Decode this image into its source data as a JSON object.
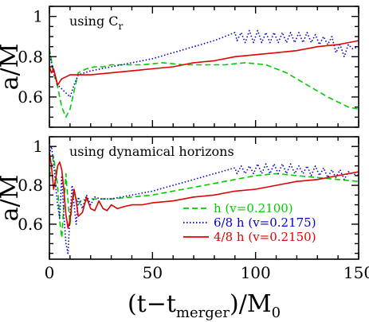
{
  "chart_data": [
    {
      "type": "line",
      "annotation": "using C",
      "annotation_sub": "r",
      "ylabel": "a/M",
      "xlim": [
        0,
        150
      ],
      "ylim": [
        0.45,
        1.05
      ],
      "xticks": [
        0,
        50,
        100,
        150
      ],
      "yticks": [
        0.6,
        0.8,
        1
      ],
      "ytick_labels": [
        "0.6",
        "0.8",
        "1"
      ],
      "series": [
        {
          "color": "#00cc00",
          "dash": "dashed",
          "x": [
            0,
            2,
            4,
            6,
            8,
            10,
            12,
            14,
            18,
            22,
            26,
            30,
            35,
            45,
            55,
            65,
            75,
            85,
            95,
            105,
            115,
            125,
            135,
            145,
            150
          ],
          "y": [
            0.84,
            0.72,
            0.65,
            0.55,
            0.5,
            0.54,
            0.63,
            0.72,
            0.74,
            0.75,
            0.75,
            0.76,
            0.76,
            0.76,
            0.77,
            0.76,
            0.76,
            0.76,
            0.77,
            0.76,
            0.72,
            0.66,
            0.6,
            0.55,
            0.54
          ]
        },
        {
          "color": "#0000cc",
          "dash": "dotted",
          "x": [
            0,
            2,
            4,
            6,
            8,
            10,
            12,
            14,
            20,
            30,
            40,
            50,
            60,
            70,
            80,
            90,
            91,
            93,
            95,
            97,
            99,
            101,
            103,
            105,
            107,
            109,
            111,
            113,
            115,
            117,
            119,
            121,
            123,
            125,
            127,
            129,
            131,
            133,
            135,
            137,
            139,
            141,
            143,
            145,
            147,
            150
          ],
          "y": [
            0.82,
            0.72,
            0.66,
            0.64,
            0.62,
            0.6,
            0.66,
            0.71,
            0.73,
            0.75,
            0.77,
            0.79,
            0.82,
            0.85,
            0.88,
            0.92,
            0.88,
            0.92,
            0.87,
            0.93,
            0.87,
            0.93,
            0.87,
            0.92,
            0.87,
            0.92,
            0.87,
            0.92,
            0.87,
            0.92,
            0.87,
            0.92,
            0.87,
            0.92,
            0.87,
            0.91,
            0.86,
            0.9,
            0.86,
            0.9,
            0.82,
            0.86,
            0.8,
            0.86,
            0.84,
            0.85
          ]
        },
        {
          "color": "#e00000",
          "dash": "solid",
          "x": [
            0,
            1,
            2,
            3,
            4,
            6,
            8,
            10,
            15,
            20,
            30,
            40,
            50,
            60,
            70,
            80,
            90,
            100,
            110,
            120,
            130,
            140,
            150
          ],
          "y": [
            0.75,
            0.72,
            0.74,
            0.7,
            0.66,
            0.69,
            0.7,
            0.71,
            0.71,
            0.71,
            0.72,
            0.73,
            0.74,
            0.75,
            0.77,
            0.78,
            0.8,
            0.81,
            0.82,
            0.83,
            0.85,
            0.86,
            0.88
          ]
        }
      ]
    },
    {
      "type": "line",
      "annotation": "using dynamical horizons",
      "ylabel": "a/M",
      "xlabel_main": "(t−t",
      "xlabel_sub": "merger",
      "xlabel_mid": ")/M",
      "xlabel_sub2": "0",
      "xlim": [
        0,
        150
      ],
      "ylim": [
        0.42,
        1.05
      ],
      "xticks": [
        0,
        50,
        100,
        150
      ],
      "xtick_labels": [
        "0",
        "50",
        "100",
        "150"
      ],
      "yticks": [
        0.6,
        0.8,
        1
      ],
      "ytick_labels": [
        "0.6",
        "0.8",
        "1"
      ],
      "legend": [
        {
          "label": "h (v=0.2100)",
          "color": "#00cc00",
          "dash": "dashed"
        },
        {
          "label": "6/8 h (v=0.2175)",
          "color": "#0000cc",
          "dash": "dotted"
        },
        {
          "label": "4/8 h (v=0.2150)",
          "color": "#e00000",
          "dash": "solid"
        }
      ],
      "series": [
        {
          "color": "#00cc00",
          "dash": "dashed",
          "x": [
            0,
            2,
            4,
            5,
            6,
            7,
            8,
            9,
            10,
            11,
            12,
            14,
            16,
            18,
            20,
            25,
            30,
            40,
            50,
            60,
            70,
            80,
            90,
            100,
            110,
            120,
            130,
            140,
            150
          ],
          "y": [
            0.84,
            0.95,
            0.8,
            0.62,
            0.53,
            0.7,
            0.86,
            0.72,
            0.6,
            0.7,
            0.76,
            0.7,
            0.73,
            0.72,
            0.73,
            0.73,
            0.73,
            0.74,
            0.75,
            0.77,
            0.79,
            0.81,
            0.83,
            0.85,
            0.86,
            0.85,
            0.84,
            0.83,
            0.82
          ]
        },
        {
          "color": "#0000cc",
          "dash": "dotted",
          "x": [
            0,
            1,
            2,
            3,
            4,
            5,
            6,
            7,
            8,
            9,
            10,
            11,
            12,
            13,
            14,
            16,
            18,
            20,
            22,
            25,
            30,
            40,
            50,
            60,
            70,
            80,
            90,
            91,
            93,
            95,
            97,
            99,
            101,
            103,
            105,
            107,
            109,
            111,
            113,
            115,
            117,
            119,
            121,
            123,
            125,
            127,
            129,
            131,
            133,
            135,
            137,
            139,
            141,
            143,
            145,
            147,
            150
          ],
          "y": [
            0.96,
            1.0,
            0.92,
            0.8,
            0.7,
            0.63,
            0.85,
            0.65,
            0.5,
            0.45,
            0.65,
            0.8,
            0.7,
            0.6,
            0.74,
            0.68,
            0.75,
            0.7,
            0.74,
            0.73,
            0.73,
            0.75,
            0.77,
            0.8,
            0.83,
            0.86,
            0.89,
            0.86,
            0.9,
            0.86,
            0.9,
            0.86,
            0.91,
            0.86,
            0.91,
            0.86,
            0.91,
            0.86,
            0.91,
            0.86,
            0.91,
            0.86,
            0.9,
            0.86,
            0.9,
            0.85,
            0.9,
            0.85,
            0.89,
            0.84,
            0.88,
            0.84,
            0.88,
            0.83,
            0.87,
            0.86,
            0.85
          ]
        },
        {
          "color": "#e00000",
          "dash": "solid",
          "x": [
            0,
            1,
            2,
            3,
            4,
            5,
            6,
            7,
            8,
            9,
            10,
            11,
            12,
            13,
            14,
            16,
            18,
            20,
            22,
            24,
            26,
            28,
            30,
            33,
            36,
            40,
            45,
            50,
            60,
            70,
            80,
            90,
            100,
            110,
            120,
            130,
            140,
            150
          ],
          "y": [
            0.97,
            0.9,
            0.78,
            0.83,
            0.9,
            0.92,
            0.88,
            0.78,
            0.65,
            0.58,
            0.62,
            0.72,
            0.78,
            0.72,
            0.64,
            0.66,
            0.74,
            0.68,
            0.67,
            0.72,
            0.68,
            0.67,
            0.7,
            0.68,
            0.69,
            0.7,
            0.7,
            0.71,
            0.72,
            0.74,
            0.75,
            0.77,
            0.78,
            0.8,
            0.82,
            0.83,
            0.85,
            0.87
          ]
        }
      ]
    }
  ]
}
